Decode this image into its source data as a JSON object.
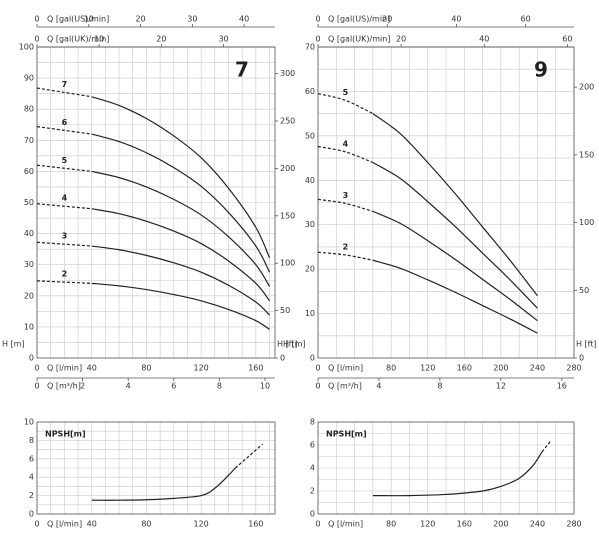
{
  "chart_data": [
    {
      "type": "line",
      "title": "7",
      "xlabel": "Q [l/min]",
      "ylabel": "H [m]",
      "y2label": "H [ft]",
      "x2label": "Q [m³/h]",
      "xlim": [
        0,
        174
      ],
      "ylim": [
        0,
        100
      ],
      "xticks": [
        0,
        40,
        80,
        120,
        160
      ],
      "yticks": [
        0,
        10,
        20,
        30,
        40,
        50,
        60,
        70,
        80,
        90,
        100
      ],
      "xgrid": [
        0,
        10,
        20,
        30,
        40,
        50,
        60,
        70,
        80,
        90,
        100,
        110,
        120,
        130,
        140,
        150,
        160,
        170
      ],
      "ygrid": [
        0,
        5,
        10,
        15,
        20,
        25,
        30,
        35,
        40,
        45,
        50,
        55,
        60,
        65,
        70,
        75,
        80,
        85,
        90,
        95,
        100
      ],
      "y2ticks": [
        0,
        {
          "value": 15.24,
          "label": "50"
        },
        {
          "value": 30.48,
          "label": "100"
        },
        {
          "value": 45.72,
          "label": "150"
        },
        {
          "value": 60.96,
          "label": "200"
        },
        {
          "value": 76.2,
          "label": "250"
        },
        {
          "value": 91.44,
          "label": "300"
        }
      ],
      "x2ticks": [
        0,
        {
          "value": 33.33,
          "label": "2"
        },
        {
          "value": 66.67,
          "label": "4"
        },
        {
          "value": 100,
          "label": "6"
        },
        {
          "value": 133.33,
          "label": "8"
        },
        {
          "value": 166.67,
          "label": "10"
        }
      ],
      "top_axes": [
        {
          "label": "Q [gal(US)/min]",
          "ticks": [
            0,
            {
              "value": 37.85,
              "label": "10"
            },
            {
              "value": 75.71,
              "label": "20"
            },
            {
              "value": 113.56,
              "label": "30"
            },
            {
              "value": 151.42,
              "label": "40"
            }
          ]
        },
        {
          "label": "Q [gal(UK)/min]",
          "ticks": [
            0,
            {
              "value": 45.46,
              "label": "10"
            },
            {
              "value": 90.92,
              "label": "20"
            },
            {
              "value": 136.38,
              "label": "30"
            }
          ]
        }
      ],
      "color": "#222",
      "dashed_xlim": [
        0,
        40
      ],
      "x": [
        0,
        20,
        40,
        60,
        80,
        100,
        120,
        140,
        160,
        170
      ],
      "series": [
        {
          "name": "7",
          "values": [
            86.8,
            85.4,
            84,
            81.2,
            77,
            71.4,
            64.4,
            54.6,
            42,
            32.2
          ]
        },
        {
          "name": "6",
          "values": [
            74.4,
            73.2,
            72,
            69.6,
            66,
            61.2,
            55.2,
            46.8,
            36,
            27.6
          ]
        },
        {
          "name": "5",
          "values": [
            62,
            61,
            60,
            58,
            55,
            51,
            46,
            39,
            30,
            23
          ]
        },
        {
          "name": "4",
          "values": [
            49.6,
            48.8,
            48,
            46.4,
            44,
            40.8,
            36.8,
            31.2,
            24,
            18.4
          ]
        },
        {
          "name": "3",
          "values": [
            37.2,
            36.6,
            36,
            34.8,
            33,
            30.6,
            27.6,
            23.4,
            18,
            13.8
          ]
        },
        {
          "name": "2",
          "values": [
            24.8,
            24.4,
            24,
            23.2,
            22,
            20.4,
            18.4,
            15.6,
            12,
            9.2
          ]
        }
      ]
    },
    {
      "type": "line",
      "title": "9",
      "xlabel": "Q [l/min]",
      "ylabel": "H [m]",
      "y2label": "H [ft]",
      "x2label": "Q [m³/h]",
      "xlim": [
        0,
        280
      ],
      "ylim": [
        0,
        70
      ],
      "xticks": [
        0,
        80,
        120,
        160,
        200,
        240,
        280
      ],
      "yticks": [
        0,
        10,
        20,
        30,
        40,
        50,
        60,
        70
      ],
      "xgrid": [
        0,
        20,
        40,
        60,
        80,
        100,
        120,
        140,
        160,
        180,
        200,
        220,
        240,
        260,
        280
      ],
      "ygrid": [
        0,
        5,
        10,
        15,
        20,
        25,
        30,
        35,
        40,
        45,
        50,
        55,
        60,
        65,
        70
      ],
      "y2ticks": [
        0,
        {
          "value": 15.24,
          "label": "50"
        },
        {
          "value": 30.48,
          "label": "100"
        },
        {
          "value": 45.72,
          "label": "150"
        },
        {
          "value": 60.96,
          "label": "200"
        }
      ],
      "x2ticks": [
        0,
        {
          "value": 66.67,
          "label": "4"
        },
        {
          "value": 133.33,
          "label": "8"
        },
        {
          "value": 200,
          "label": "12"
        },
        {
          "value": 266.67,
          "label": "16"
        }
      ],
      "top_axes": [
        {
          "label": "Q [gal(US)/min]",
          "ticks": [
            0,
            {
              "value": 75.71,
              "label": "20"
            },
            {
              "value": 151.42,
              "label": "40"
            },
            {
              "value": 227.12,
              "label": "60"
            }
          ]
        },
        {
          "label": "Q [gal(UK)/min]",
          "ticks": [
            0,
            {
              "value": 90.92,
              "label": "20"
            },
            {
              "value": 181.84,
              "label": "40"
            },
            {
              "value": 272.76,
              "label": "60"
            }
          ]
        }
      ],
      "color": "#222",
      "dashed_xlim": [
        0,
        60
      ],
      "x": [
        0,
        30,
        60,
        90,
        120,
        150,
        180,
        210,
        240
      ],
      "series": [
        {
          "name": "5",
          "values": [
            59.5,
            58,
            55,
            50.5,
            44,
            37,
            29.5,
            22,
            14
          ]
        },
        {
          "name": "4",
          "values": [
            47.6,
            46.4,
            44,
            40.4,
            35.2,
            29.6,
            23.6,
            17.6,
            11.2
          ]
        },
        {
          "name": "3",
          "values": [
            35.7,
            34.8,
            33,
            30.3,
            26.4,
            22.2,
            17.7,
            13.2,
            8.4
          ]
        },
        {
          "name": "2",
          "values": [
            23.8,
            23.2,
            22,
            20.2,
            17.6,
            14.8,
            11.8,
            8.8,
            5.6
          ]
        }
      ]
    },
    {
      "type": "line",
      "ylabel": "NPSH[m]",
      "xlabel": "Q [l/min]",
      "xlim": [
        0,
        174
      ],
      "ylim": [
        0,
        10
      ],
      "xticks": [
        0,
        40,
        80,
        120,
        160
      ],
      "yticks": [
        0,
        2,
        4,
        6,
        8,
        10
      ],
      "xgrid": [
        0,
        10,
        20,
        30,
        40,
        50,
        60,
        70,
        80,
        90,
        100,
        110,
        120,
        130,
        140,
        150,
        160,
        170
      ],
      "ygrid": [
        0,
        1,
        2,
        3,
        4,
        5,
        6,
        7,
        8,
        9,
        10
      ],
      "color": "#222",
      "dashed_xlim": [
        145,
        165
      ],
      "x": [
        40,
        60,
        80,
        100,
        120,
        130,
        140,
        145,
        155,
        165
      ],
      "series": [
        {
          "values": [
            1.5,
            1.5,
            1.55,
            1.7,
            2.0,
            2.8,
            4.2,
            5.0,
            6.3,
            7.6
          ]
        }
      ]
    },
    {
      "type": "line",
      "ylabel": "NPSH[m]",
      "xlabel": "Q [l/min]",
      "xlim": [
        0,
        280
      ],
      "ylim": [
        0,
        8
      ],
      "xticks": [
        0,
        80,
        120,
        160,
        200,
        240,
        280
      ],
      "yticks": [
        0,
        2,
        4,
        6,
        8
      ],
      "xgrid": [
        0,
        20,
        40,
        60,
        80,
        100,
        120,
        140,
        160,
        180,
        200,
        220,
        240,
        260,
        280
      ],
      "ygrid": [
        0,
        1,
        2,
        3,
        4,
        5,
        6,
        7,
        8
      ],
      "color": "#222",
      "dashed_xlim": [
        245,
        255
      ],
      "x": [
        60,
        100,
        140,
        180,
        200,
        220,
        235,
        245,
        255
      ],
      "series": [
        {
          "values": [
            1.6,
            1.6,
            1.7,
            2.0,
            2.4,
            3.1,
            4.2,
            5.4,
            6.4
          ]
        }
      ]
    }
  ]
}
